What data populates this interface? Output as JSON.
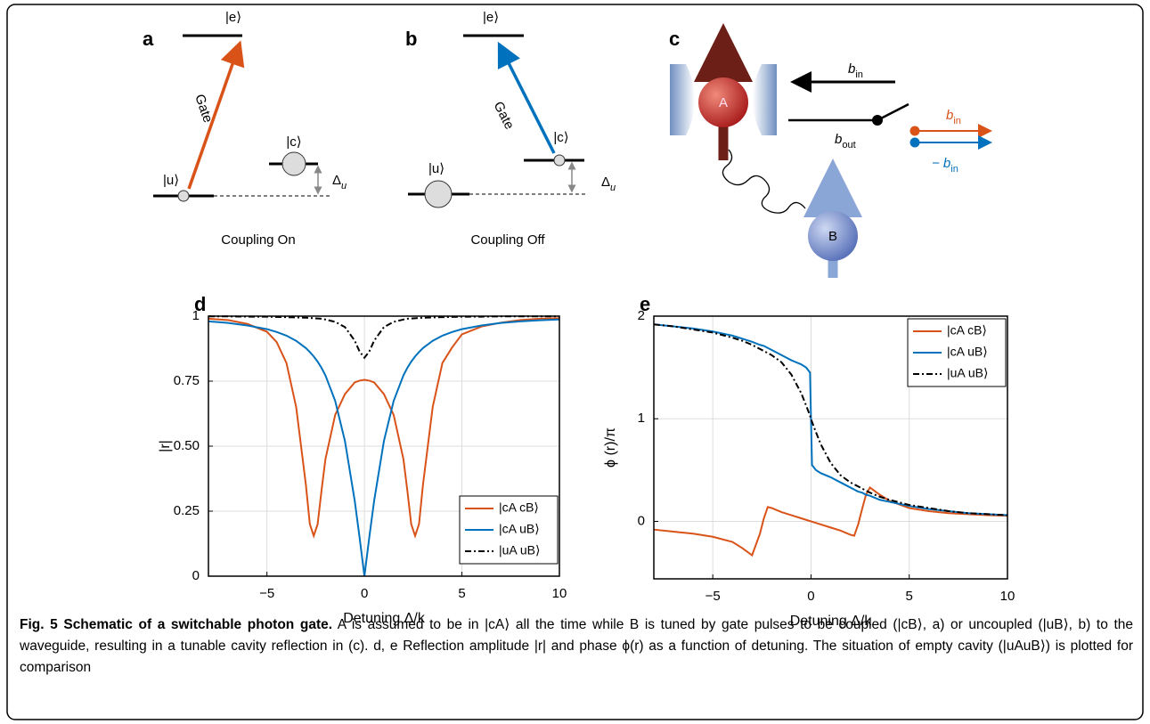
{
  "panels": {
    "a": {
      "label": "a",
      "e": "|e⟩",
      "c": "|c⟩",
      "u": "|u⟩",
      "gate": "Gate",
      "delta": {
        "base": "Δ",
        "sub": "u"
      },
      "caption": "Coupling On"
    },
    "b": {
      "label": "b",
      "e": "|e⟩",
      "c": "|c⟩",
      "u": "|u⟩",
      "gate": "Gate",
      "delta": {
        "base": "Δ",
        "sub": "u"
      },
      "caption": "Coupling Off"
    },
    "c": {
      "label": "c",
      "atom_a": "A",
      "atom_b": "B",
      "b_in": {
        "base": "b",
        "sub": "in"
      },
      "b_out": {
        "base": "b",
        "sub": "out"
      },
      "b_in_orange": {
        "base": "b",
        "sub": "in"
      },
      "minus_b_in": {
        "base": "− b",
        "sub": "in"
      }
    }
  },
  "chart_data": [
    {
      "type": "line",
      "panel": "d",
      "xlabel": "Detuning Δ/k",
      "ylabel": "|r|",
      "x": [
        -8,
        -7,
        -6,
        -5,
        -4.5,
        -4,
        -3.5,
        -3,
        -2.8,
        -2.6,
        -2.4,
        -2.2,
        -2,
        -1.5,
        -1,
        -0.5,
        -0.25,
        0,
        0.25,
        0.5,
        1,
        1.5,
        2,
        2.2,
        2.4,
        2.6,
        2.8,
        3,
        3.5,
        4,
        4.5,
        5,
        6,
        7,
        8,
        9,
        10
      ],
      "series": [
        {
          "name": "|cA cB⟩",
          "color": "#d95319",
          "dash": "solid",
          "values": [
            0.99,
            0.985,
            0.97,
            0.94,
            0.9,
            0.82,
            0.65,
            0.35,
            0.2,
            0.155,
            0.2,
            0.33,
            0.45,
            0.62,
            0.7,
            0.745,
            0.752,
            0.755,
            0.752,
            0.745,
            0.7,
            0.62,
            0.45,
            0.33,
            0.2,
            0.155,
            0.2,
            0.35,
            0.65,
            0.82,
            0.88,
            0.93,
            0.96,
            0.975,
            0.985,
            0.99,
            0.992
          ]
        },
        {
          "name": "|cA uB⟩",
          "color": "#0072bd",
          "dash": "solid",
          "values": [
            0.98,
            0.974,
            0.964,
            0.95,
            0.939,
            0.925,
            0.905,
            0.877,
            0.862,
            0.845,
            0.825,
            0.801,
            0.772,
            0.674,
            0.52,
            0.291,
            0.15,
            0,
            0.15,
            0.291,
            0.52,
            0.674,
            0.772,
            0.801,
            0.825,
            0.845,
            0.862,
            0.877,
            0.905,
            0.925,
            0.939,
            0.95,
            0.964,
            0.974,
            0.98,
            0.984,
            0.987
          ]
        },
        {
          "name": "|uA uB⟩",
          "color": "#000000",
          "dash": "dashdot",
          "values": [
            0.999,
            0.999,
            0.998,
            0.998,
            0.997,
            0.996,
            0.995,
            0.994,
            0.993,
            0.992,
            0.991,
            0.99,
            0.987,
            0.978,
            0.958,
            0.906,
            0.864,
            0.84,
            0.864,
            0.906,
            0.958,
            0.978,
            0.987,
            0.99,
            0.991,
            0.992,
            0.993,
            0.994,
            0.995,
            0.996,
            0.997,
            0.998,
            0.998,
            0.999,
            0.999,
            0.999,
            0.999
          ]
        }
      ],
      "xlim": [
        -8,
        10
      ],
      "ylim": [
        0,
        1
      ],
      "xticks": [
        {
          "value": -5,
          "label": "−5"
        },
        0,
        5,
        10
      ],
      "yticks": [
        0,
        0.25,
        {
          "value": 0.5,
          "label": "0.50"
        },
        0.75,
        1
      ],
      "grid": true,
      "legend": "lower right"
    },
    {
      "type": "line",
      "panel": "e",
      "xlabel": "Detuning Δ/k",
      "ylabel": "ϕ (r)/π",
      "x": [
        -8,
        -7,
        -6,
        -5,
        -4,
        -3.5,
        -3,
        -2.6,
        -2.4,
        -2.2,
        -2,
        -1.5,
        -1,
        -0.5,
        -0.25,
        -0.05,
        0,
        0.05,
        0.25,
        0.5,
        1,
        1.5,
        2,
        2.2,
        2.4,
        2.6,
        2.8,
        3,
        3.5,
        4,
        5,
        6,
        7,
        8,
        9,
        10
      ],
      "series": [
        {
          "name": "|cA cB⟩",
          "color": "#d95319",
          "dash": "solid",
          "values": [
            -0.08,
            -0.1,
            -0.12,
            -0.15,
            -0.2,
            -0.26,
            -0.33,
            -0.12,
            0.03,
            0.14,
            0.13,
            0.09,
            0.06,
            0.03,
            0.015,
            0.003,
            0,
            -0.003,
            -0.015,
            -0.03,
            -0.06,
            -0.09,
            -0.13,
            -0.14,
            -0.03,
            0.12,
            0.26,
            0.33,
            0.26,
            0.2,
            0.13,
            0.1,
            0.08,
            0.07,
            0.06,
            0.055
          ]
        },
        {
          "name": "|cA uB⟩",
          "color": "#0072bd",
          "dash": "solid",
          "values": [
            1.92,
            1.9,
            1.88,
            1.85,
            1.81,
            1.78,
            1.75,
            1.72,
            1.71,
            1.69,
            1.67,
            1.62,
            1.57,
            1.53,
            1.5,
            1.45,
            1,
            0.55,
            0.5,
            0.47,
            0.43,
            0.38,
            0.33,
            0.31,
            0.29,
            0.28,
            0.26,
            0.25,
            0.21,
            0.19,
            0.15,
            0.12,
            0.1,
            0.08,
            0.07,
            0.06
          ]
        },
        {
          "name": "|uA uB⟩",
          "color": "#000000",
          "dash": "dashdot",
          "values": [
            1.92,
            1.9,
            1.87,
            1.84,
            1.79,
            1.76,
            1.72,
            1.68,
            1.66,
            1.64,
            1.62,
            1.55,
            1.43,
            1.25,
            1.13,
            1.03,
            1,
            0.97,
            0.87,
            0.75,
            0.57,
            0.45,
            0.38,
            0.36,
            0.34,
            0.32,
            0.3,
            0.28,
            0.24,
            0.21,
            0.16,
            0.13,
            0.1,
            0.08,
            0.07,
            0.06
          ]
        }
      ],
      "xlim": [
        -8,
        10
      ],
      "ylim": [
        -0.56,
        2
      ],
      "xticks": [
        {
          "value": -5,
          "label": "−5"
        },
        0,
        5,
        10
      ],
      "yticks": [
        0,
        1,
        2
      ],
      "grid": true,
      "legend": "upper right"
    }
  ],
  "caption": {
    "title": "Fig. 5 Schematic of a switchable photon gate.",
    "body": "A is assumed to be in |cA⟩ all the time while B is tuned by gate pulses to be coupled (|cB⟩, a) or uncoupled (|uB⟩, b) to the waveguide, resulting in a tunable cavity reflection in (c). d, e Reflection amplitude |r| and phase ϕ(r) as a function of detuning. The situation of empty cavity (|uAuB⟩) is plotted for comparison"
  }
}
